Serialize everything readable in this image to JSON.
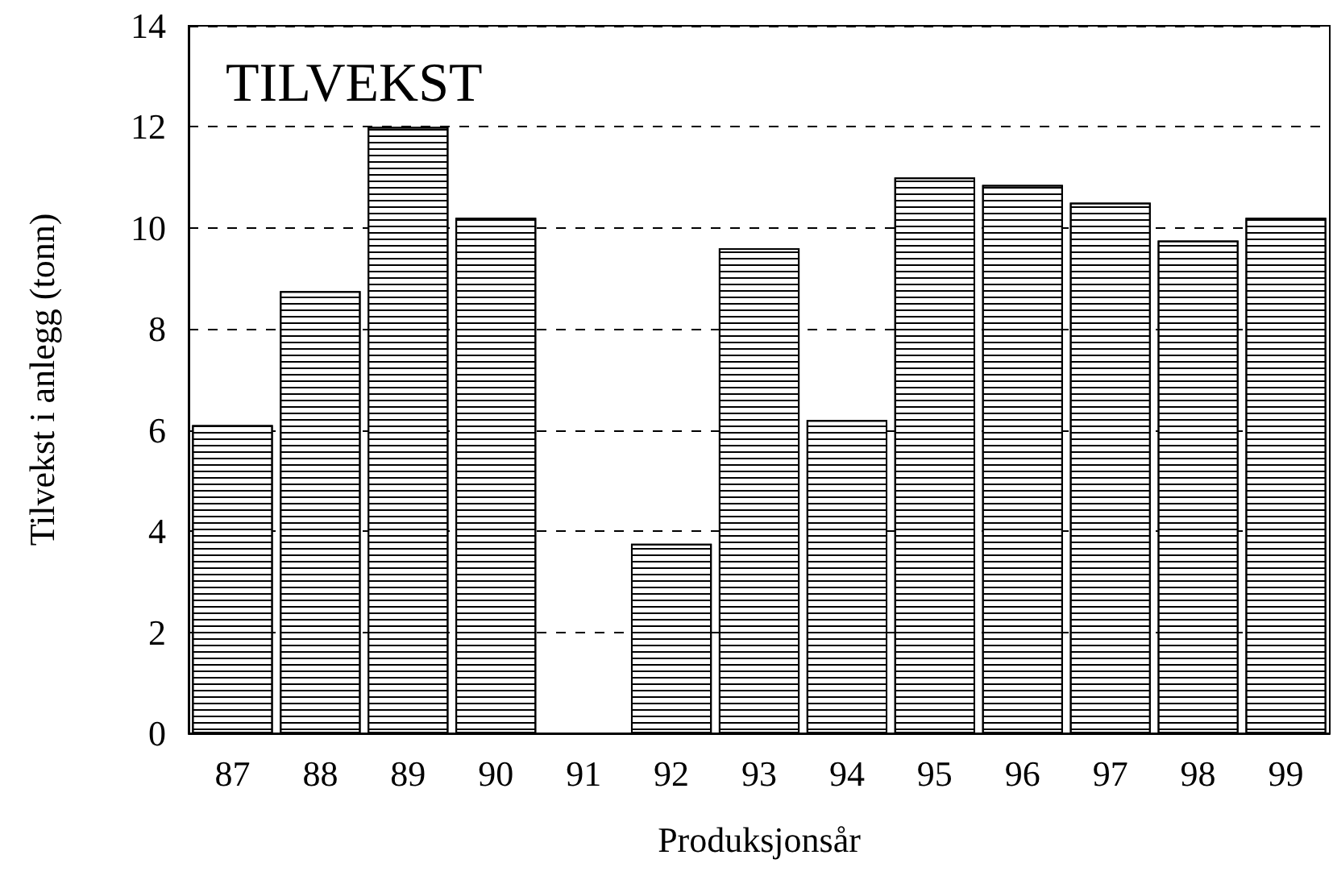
{
  "chart_data": {
    "type": "bar",
    "title": "TILVEKST",
    "xlabel": "Produksjonsår",
    "ylabel": "Tilvekst i anlegg (tonn)",
    "categories": [
      "87",
      "88",
      "89",
      "90",
      "91",
      "92",
      "93",
      "94",
      "95",
      "96",
      "97",
      "98",
      "99"
    ],
    "values": [
      6.1,
      8.75,
      12.0,
      10.2,
      0,
      3.75,
      9.6,
      6.2,
      11.0,
      10.85,
      10.5,
      9.75,
      10.2
    ],
    "color": "#000000",
    "ylim": [
      0,
      14
    ],
    "yticks": [
      0,
      2,
      4,
      6,
      8,
      10,
      12,
      14
    ],
    "grid": "y"
  }
}
